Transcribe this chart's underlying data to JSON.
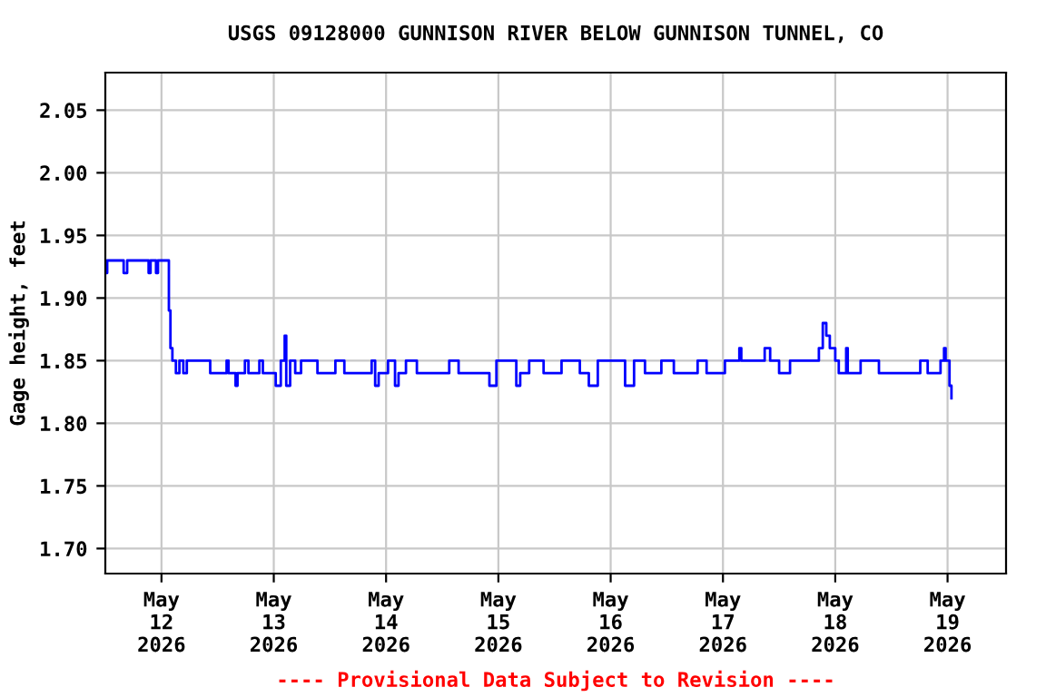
{
  "chart_data": {
    "type": "step",
    "title": "USGS 09128000 GUNNISON RIVER BELOW GUNNISON TUNNEL, CO",
    "ylabel": "Gage height, feet",
    "annotations": [
      "---- Provisional Data Subject to Revision ----"
    ],
    "x": [
      "2026-05-11T12:00",
      "2026-05-11T12:24",
      "2026-05-11T13:55",
      "2026-05-11T15:55",
      "2026-05-11T16:40",
      "2026-05-11T20:55",
      "2026-05-11T21:15",
      "2026-05-11T21:40",
      "2026-05-11T22:50",
      "2026-05-11T23:15",
      "2026-05-12T01:10",
      "2026-05-12T01:35",
      "2026-05-12T01:55",
      "2026-05-12T02:20",
      "2026-05-12T03:05",
      "2026-05-12T03:50",
      "2026-05-12T04:40",
      "2026-05-12T05:25",
      "2026-05-12T10:05",
      "2026-05-12T10:25",
      "2026-05-12T13:35",
      "2026-05-12T13:55",
      "2026-05-12T14:20",
      "2026-05-12T15:50",
      "2026-05-12T16:15",
      "2026-05-12T17:50",
      "2026-05-12T18:35",
      "2026-05-12T20:55",
      "2026-05-12T21:40",
      "2026-05-13T00:25",
      "2026-05-13T01:30",
      "2026-05-13T02:20",
      "2026-05-13T02:40",
      "2026-05-13T03:30",
      "2026-05-13T04:35",
      "2026-05-13T05:50",
      "2026-05-13T09:20",
      "2026-05-13T13:10",
      "2026-05-13T15:05",
      "2026-05-13T20:55",
      "2026-05-13T21:40",
      "2026-05-13T22:25",
      "2026-05-14T00:25",
      "2026-05-14T01:55",
      "2026-05-14T02:40",
      "2026-05-14T04:15",
      "2026-05-14T06:35",
      "2026-05-14T12:25",
      "2026-05-14T13:30",
      "2026-05-14T15:30",
      "2026-05-14T18:10",
      "2026-05-14T22:05",
      "2026-05-14T23:35",
      "2026-05-15T03:50",
      "2026-05-15T04:40",
      "2026-05-15T06:35",
      "2026-05-15T09:40",
      "2026-05-15T13:30",
      "2026-05-15T17:25",
      "2026-05-15T19:20",
      "2026-05-15T21:15",
      "2026-05-16T03:05",
      "2026-05-16T05:00",
      "2026-05-16T07:20",
      "2026-05-16T10:50",
      "2026-05-16T13:30",
      "2026-05-16T18:35",
      "2026-05-16T20:30",
      "2026-05-17T00:25",
      "2026-05-17T03:30",
      "2026-05-17T03:55",
      "2026-05-17T07:25",
      "2026-05-17T08:55",
      "2026-05-17T10:05",
      "2026-05-17T12:00",
      "2026-05-17T14:20",
      "2026-05-17T19:45",
      "2026-05-17T20:30",
      "2026-05-17T21:20",
      "2026-05-17T22:05",
      "2026-05-17T22:50",
      "2026-05-18T00:00",
      "2026-05-18T00:45",
      "2026-05-18T02:20",
      "2026-05-18T02:40",
      "2026-05-18T05:25",
      "2026-05-18T09:20",
      "2026-05-18T17:00",
      "2026-05-18T18:10",
      "2026-05-18T19:45",
      "2026-05-18T22:30",
      "2026-05-18T23:15",
      "2026-05-18T23:35",
      "2026-05-19T00:25",
      "2026-05-19T00:50"
    ],
    "series": [
      {
        "color": "#0000ff",
        "values": [
          1.92,
          1.93,
          1.93,
          1.92,
          1.93,
          1.93,
          1.92,
          1.93,
          1.92,
          1.93,
          1.93,
          1.89,
          1.86,
          1.85,
          1.84,
          1.85,
          1.84,
          1.85,
          1.85,
          1.84,
          1.84,
          1.85,
          1.84,
          1.83,
          1.84,
          1.85,
          1.84,
          1.85,
          1.84,
          1.83,
          1.85,
          1.87,
          1.83,
          1.85,
          1.84,
          1.85,
          1.84,
          1.85,
          1.84,
          1.85,
          1.83,
          1.84,
          1.85,
          1.83,
          1.84,
          1.85,
          1.84,
          1.84,
          1.85,
          1.84,
          1.84,
          1.83,
          1.85,
          1.83,
          1.84,
          1.85,
          1.84,
          1.85,
          1.84,
          1.83,
          1.85,
          1.83,
          1.85,
          1.84,
          1.85,
          1.84,
          1.85,
          1.84,
          1.85,
          1.86,
          1.85,
          1.85,
          1.86,
          1.85,
          1.84,
          1.85,
          1.85,
          1.86,
          1.88,
          1.87,
          1.86,
          1.85,
          1.84,
          1.86,
          1.84,
          1.85,
          1.84,
          1.84,
          1.85,
          1.84,
          1.85,
          1.86,
          1.85,
          1.83,
          1.82
        ]
      }
    ],
    "xlim": [
      "2026-05-11T12:00",
      "2026-05-19T12:30"
    ],
    "xticks": [
      {
        "value": "2026-05-12",
        "label": "May\n12\n2026"
      },
      {
        "value": "2026-05-13",
        "label": "May\n13\n2026"
      },
      {
        "value": "2026-05-14",
        "label": "May\n14\n2026"
      },
      {
        "value": "2026-05-15",
        "label": "May\n15\n2026"
      },
      {
        "value": "2026-05-16",
        "label": "May\n16\n2026"
      },
      {
        "value": "2026-05-17",
        "label": "May\n17\n2026"
      },
      {
        "value": "2026-05-18",
        "label": "May\n18\n2026"
      },
      {
        "value": "2026-05-19",
        "label": "May\n19\n2026"
      }
    ],
    "ylim": [
      1.68,
      2.08
    ],
    "yticks": [
      {
        "value": 1.7,
        "label": "1.70"
      },
      {
        "value": 1.75,
        "label": "1.75"
      },
      {
        "value": 1.8,
        "label": "1.80"
      },
      {
        "value": 1.85,
        "label": "1.85"
      },
      {
        "value": 1.9,
        "label": "1.90"
      },
      {
        "value": 1.95,
        "label": "1.95"
      },
      {
        "value": 2.0,
        "label": "2.00"
      },
      {
        "value": 2.05,
        "label": "2.05"
      }
    ],
    "grid": true
  }
}
